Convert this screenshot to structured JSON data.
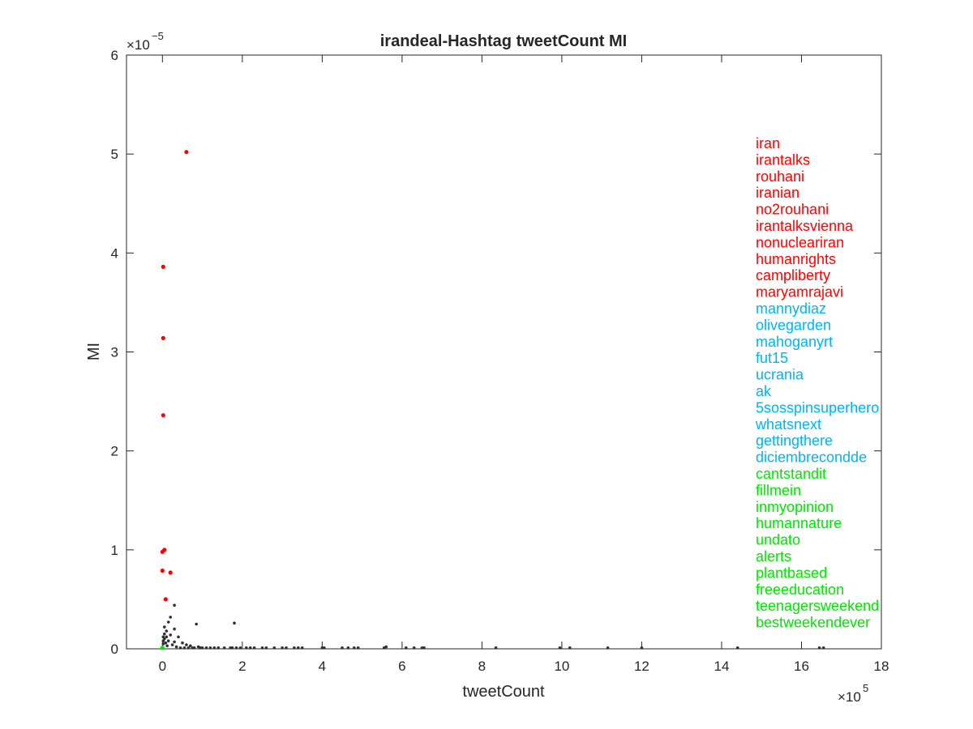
{
  "colors": {
    "red_group": "#ff0000",
    "cyan_group": "#00b4f0",
    "green_group": "#00e600",
    "other_points": "#303030",
    "axes": "#262626",
    "background": "#ffffff"
  },
  "chart_data": {
    "type": "scatter",
    "title": "irandeal-Hashtag tweetCount MI",
    "xlabel": "tweetCount",
    "ylabel": "MI",
    "x_exponent_label": "×10",
    "x_exponent_power": "5",
    "y_exponent_label": "×10",
    "y_exponent_power": "−5",
    "x_scale_factor": 100000,
    "y_scale_factor": 1e-05,
    "xlim": [
      -0.9,
      18
    ],
    "ylim": [
      0,
      6
    ],
    "x_ticks": [
      0,
      2,
      4,
      6,
      8,
      10,
      12,
      14,
      16,
      18
    ],
    "y_ticks": [
      0,
      1,
      2,
      3,
      4,
      5,
      6
    ],
    "grid": false,
    "series": [
      {
        "group": "red",
        "points": [
          [
            0.6,
            5.02
          ],
          [
            0.02,
            3.86
          ],
          [
            0.02,
            3.14
          ],
          [
            0.02,
            2.36
          ],
          [
            0.05,
            1.0
          ],
          [
            0.0,
            0.98
          ],
          [
            0.0,
            0.79
          ],
          [
            0.2,
            0.77
          ],
          [
            0.08,
            0.5
          ]
        ]
      },
      {
        "group": "green",
        "points": [
          [
            0.0,
            0.01
          ]
        ]
      },
      {
        "group": "other",
        "points": [
          [
            0.3,
            0.44
          ],
          [
            0.2,
            0.32
          ],
          [
            0.85,
            0.25
          ],
          [
            0.15,
            0.27
          ],
          [
            1.8,
            0.26
          ],
          [
            0.05,
            0.22
          ],
          [
            0.3,
            0.2
          ],
          [
            0.1,
            0.18
          ],
          [
            0.05,
            0.15
          ],
          [
            0.2,
            0.14
          ],
          [
            0.4,
            0.12
          ],
          [
            0.1,
            0.12
          ],
          [
            0.05,
            0.1
          ],
          [
            0.15,
            0.08
          ],
          [
            0.3,
            0.07
          ],
          [
            0.5,
            0.06
          ],
          [
            0.08,
            0.06
          ],
          [
            0.6,
            0.04
          ],
          [
            0.25,
            0.04
          ],
          [
            0.12,
            0.03
          ],
          [
            0.9,
            0.02
          ],
          [
            0.7,
            0.03
          ],
          [
            0.35,
            0.02
          ],
          [
            0.02,
            0.05
          ],
          [
            0.02,
            0.08
          ],
          [
            0.02,
            0.12
          ],
          [
            0.45,
            0.01
          ],
          [
            0.55,
            0.01
          ],
          [
            0.65,
            0.01
          ],
          [
            0.75,
            0.01
          ],
          [
            0.8,
            0.01
          ],
          [
            0.95,
            0.01
          ],
          [
            1.0,
            0.01
          ],
          [
            1.1,
            0.01
          ],
          [
            1.2,
            0.01
          ],
          [
            1.3,
            0.01
          ],
          [
            1.4,
            0.01
          ],
          [
            1.55,
            0.01
          ],
          [
            1.7,
            0.01
          ],
          [
            1.75,
            0.01
          ],
          [
            1.85,
            0.01
          ],
          [
            1.95,
            0.01
          ],
          [
            2.1,
            0.01
          ],
          [
            2.2,
            0.01
          ],
          [
            2.3,
            0.01
          ],
          [
            2.5,
            0.01
          ],
          [
            2.6,
            0.01
          ],
          [
            2.8,
            0.01
          ],
          [
            3.0,
            0.01
          ],
          [
            3.1,
            0.01
          ],
          [
            3.3,
            0.01
          ],
          [
            3.4,
            0.01
          ],
          [
            3.5,
            0.01
          ],
          [
            4.0,
            0.01
          ],
          [
            4.05,
            0.01
          ],
          [
            4.5,
            0.01
          ],
          [
            4.65,
            0.01
          ],
          [
            4.8,
            0.01
          ],
          [
            4.9,
            0.01
          ],
          [
            5.55,
            0.01
          ],
          [
            5.6,
            0.02
          ],
          [
            6.1,
            0.01
          ],
          [
            6.3,
            0.01
          ],
          [
            6.5,
            0.01
          ],
          [
            6.55,
            0.01
          ],
          [
            8.35,
            0.01
          ],
          [
            9.95,
            0.01
          ],
          [
            10.2,
            0.01
          ],
          [
            11.15,
            0.01
          ],
          [
            12.0,
            0.01
          ],
          [
            14.4,
            0.01
          ],
          [
            16.45,
            0.01
          ],
          [
            16.55,
            0.01
          ]
        ]
      }
    ],
    "legend": {
      "placement": "right",
      "entries": [
        {
          "label": "iran",
          "group": "red"
        },
        {
          "label": "irantalks",
          "group": "red"
        },
        {
          "label": "rouhani",
          "group": "red"
        },
        {
          "label": "iranian",
          "group": "red"
        },
        {
          "label": "no2rouhani",
          "group": "red"
        },
        {
          "label": "irantalksvienna",
          "group": "red"
        },
        {
          "label": "nonucleariran",
          "group": "red"
        },
        {
          "label": "humanrights",
          "group": "red"
        },
        {
          "label": "campliberty",
          "group": "red"
        },
        {
          "label": "maryamrajavi",
          "group": "red"
        },
        {
          "label": "mannydiaz",
          "group": "cyan"
        },
        {
          "label": "olivegarden",
          "group": "cyan"
        },
        {
          "label": "mahoganyrt",
          "group": "cyan"
        },
        {
          "label": "fut15",
          "group": "cyan"
        },
        {
          "label": "ucrania",
          "group": "cyan"
        },
        {
          "label": "ak",
          "group": "cyan"
        },
        {
          "label": "5sosspinsuperhero",
          "group": "cyan"
        },
        {
          "label": "whatsnext",
          "group": "cyan"
        },
        {
          "label": "gettingthere",
          "group": "cyan"
        },
        {
          "label": "diciembrecondde",
          "group": "cyan"
        },
        {
          "label": "cantstandit",
          "group": "green"
        },
        {
          "label": "fillmein",
          "group": "green"
        },
        {
          "label": "inmyopinion",
          "group": "green"
        },
        {
          "label": "humannature",
          "group": "green"
        },
        {
          "label": "undato",
          "group": "green"
        },
        {
          "label": "alerts",
          "group": "green"
        },
        {
          "label": "plantbased",
          "group": "green"
        },
        {
          "label": "freeeducation",
          "group": "green"
        },
        {
          "label": "teenagersweekend",
          "group": "green"
        },
        {
          "label": "bestweekendever",
          "group": "green"
        }
      ]
    }
  }
}
